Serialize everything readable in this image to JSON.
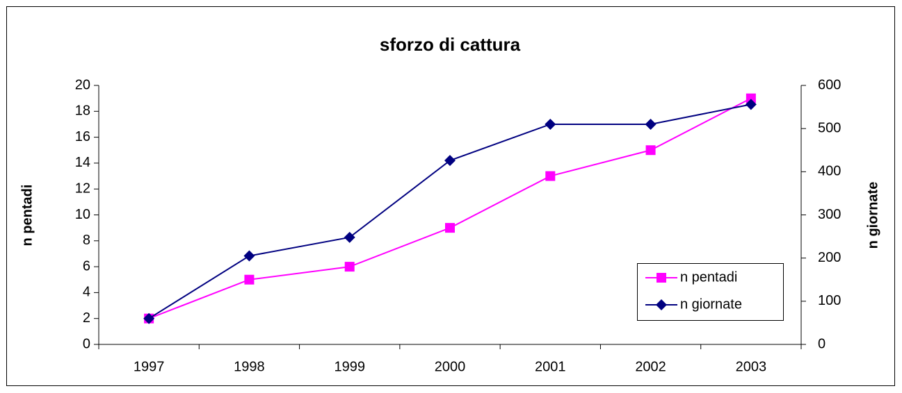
{
  "chart_data": {
    "type": "line",
    "title": "sforzo di cattura",
    "categories": [
      "1997",
      "1998",
      "1999",
      "2000",
      "2001",
      "2002",
      "2003"
    ],
    "series": [
      {
        "name": "n pentadi",
        "color": "#ff00ff",
        "marker": "square",
        "axis": "y",
        "values": [
          2,
          5,
          6,
          9,
          13,
          15,
          19
        ]
      },
      {
        "name": "n giornate",
        "color": "#000080",
        "marker": "diamond",
        "axis": "y2",
        "values": [
          60,
          205,
          248,
          426,
          510,
          510,
          556
        ]
      }
    ],
    "ylabel": "n pentadi",
    "y2label": "n giornate",
    "ylim": [
      0,
      20
    ],
    "yticks": [
      0,
      2,
      4,
      6,
      8,
      10,
      12,
      14,
      16,
      18,
      20
    ],
    "y2lim": [
      0,
      600
    ],
    "y2ticks": [
      0,
      100,
      200,
      300,
      400,
      500,
      600
    ],
    "legend": "lower right"
  }
}
